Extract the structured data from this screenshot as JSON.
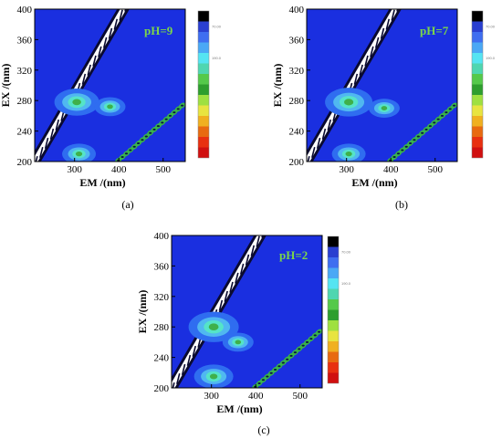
{
  "chart_data": [
    {
      "type": "heatmap",
      "caption": "(a)",
      "annotation": "pH=9",
      "xlabel": "EM /(nm)",
      "ylabel": "EX /(nm)",
      "xlim": [
        210,
        550
      ],
      "ylim": [
        200,
        400
      ],
      "x_ticks": [
        300,
        400,
        500
      ],
      "y_ticks": [
        200,
        240,
        280,
        320,
        360,
        400
      ],
      "peaks": [
        {
          "em": 305,
          "ex": 278,
          "level": 0.55
        },
        {
          "em": 310,
          "ex": 210,
          "level": 0.35
        },
        {
          "em": 380,
          "ex": 272,
          "level": 0.3
        }
      ]
    },
    {
      "type": "heatmap",
      "caption": "(b)",
      "annotation": "pH=7",
      "xlabel": "EM /(nm)",
      "ylabel": "EX /(nm)",
      "xlim": [
        210,
        550
      ],
      "ylim": [
        200,
        400
      ],
      "x_ticks": [
        300,
        400,
        500
      ],
      "y_ticks": [
        200,
        240,
        280,
        320,
        360,
        400
      ],
      "peaks": [
        {
          "em": 305,
          "ex": 278,
          "level": 0.6
        },
        {
          "em": 305,
          "ex": 210,
          "level": 0.35
        },
        {
          "em": 385,
          "ex": 270,
          "level": 0.3
        }
      ]
    },
    {
      "type": "heatmap",
      "caption": "(c)",
      "annotation": "pH=2",
      "xlabel": "EM /(nm)",
      "ylabel": "EX /(nm)",
      "xlim": [
        210,
        550
      ],
      "ylim": [
        200,
        400
      ],
      "x_ticks": [
        300,
        400,
        500
      ],
      "y_ticks": [
        200,
        240,
        280,
        320,
        360,
        400
      ],
      "peaks": [
        {
          "em": 305,
          "ex": 280,
          "level": 0.65
        },
        {
          "em": 305,
          "ex": 215,
          "level": 0.45
        },
        {
          "em": 360,
          "ex": 260,
          "level": 0.3
        }
      ]
    }
  ],
  "colorbar": {
    "colors": [
      "#000000",
      "#2a3fd0",
      "#3f6ef0",
      "#4aa8f5",
      "#55e4f2",
      "#4fd6b0",
      "#55c94a",
      "#2e9e2e",
      "#9fe040",
      "#e8e440",
      "#f0b020",
      "#e86a10",
      "#e83010",
      "#d01010"
    ],
    "labels": [
      "",
      "70.00",
      "",
      "",
      "190.0",
      "",
      "",
      "",
      "",
      "",
      "",
      "",
      "",
      ""
    ]
  }
}
